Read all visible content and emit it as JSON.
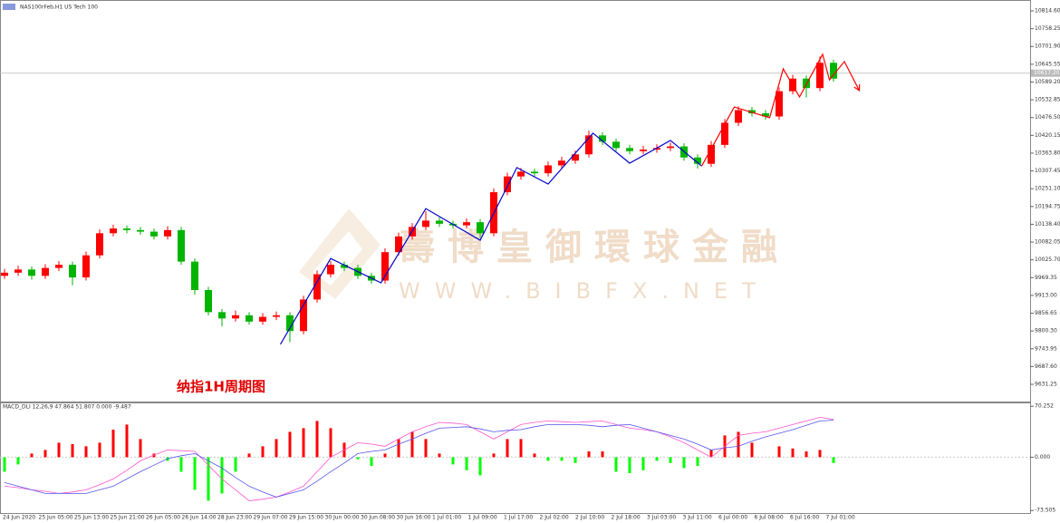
{
  "chart_data": [
    {
      "type": "candlestick",
      "title": "NAS100rFeb,H1  US Tech 100",
      "annotation": "纳指1H周期图",
      "watermark": "壽博皇御環球金融",
      "watermark_url": "WWW.BIBFX.NET",
      "up_color": "#ff0000",
      "down_color": "#00b400",
      "ylim": [
        9576.7,
        10843.3
      ],
      "yticks": [
        {
          "value": 10814.6,
          "label": "10814.60"
        },
        10758.25,
        {
          "value": 10701.9,
          "label": "10701.90"
        },
        10645.55,
        {
          "value": 10589.2,
          "label": "10589.20"
        },
        10532.85,
        {
          "value": 10476.5,
          "label": "10476.50"
        },
        10420.15,
        {
          "value": 10363.8,
          "label": "10363.80"
        },
        10307.45,
        {
          "value": 10251.1,
          "label": "10251.10"
        },
        10194.75,
        {
          "value": 10138.4,
          "label": "10138.40"
        },
        10082.05,
        {
          "value": 10025.7,
          "label": "10025.70"
        },
        9969.35,
        {
          "value": 9913,
          "label": "9913.00"
        },
        9856.65,
        {
          "value": 9800.3,
          "label": "9800.30"
        },
        9743.95,
        {
          "value": 9687.6,
          "label": "9687.60"
        },
        9631.25
      ],
      "current_price": {
        "value": 10617.2,
        "label": "10617.20"
      },
      "x_labels": [
        "24 Jun 2020",
        "25 Jun 05:00",
        "25 Jun 13:00",
        "25 Jun 21:00",
        "26 Jun 05:00",
        "26 Jun 14:00",
        "28 Jun 23:00",
        "29 Jun 07:00",
        "29 Jun 15:00",
        "30 Jun 00:00",
        "30 Jun 08:00",
        "30 Jun 16:00",
        "1 Jul 01:00",
        "1 Jul 09:00",
        "1 Jul 17:00",
        "2 Jul 02:00",
        "2 Jul 10:00",
        "2 Jul 18:00",
        "3 Jul 03:00",
        "3 Jul 11:00",
        "6 Jul 00:00",
        "6 Jul 08:00",
        "6 Jul 16:00",
        "7 Jul 01:00"
      ],
      "ohlc": [
        [
          9975,
          9997,
          9965,
          9985
        ],
        [
          9985,
          10007,
          9975,
          9995
        ],
        [
          9995,
          10005,
          9963,
          9975
        ],
        [
          9975,
          10012,
          9965,
          10000
        ],
        [
          10000,
          10022,
          9990,
          10010
        ],
        [
          10010,
          10020,
          9945,
          9970
        ],
        [
          9970,
          10052,
          9960,
          10040
        ],
        [
          10040,
          10122,
          10030,
          10110
        ],
        [
          10110,
          10137,
          10100,
          10125
        ],
        [
          10125,
          10135,
          10110,
          10120
        ],
        [
          10120,
          10130,
          10105,
          10115
        ],
        [
          10115,
          10125,
          10090,
          10100
        ],
        [
          10100,
          10132,
          10090,
          10120
        ],
        [
          10120,
          10130,
          10010,
          10020
        ],
        [
          10020,
          10030,
          9915,
          9930
        ],
        [
          9930,
          9940,
          9850,
          9860
        ],
        [
          9860,
          9870,
          9815,
          9840
        ],
        [
          9840,
          9865,
          9830,
          9850
        ],
        [
          9850,
          9860,
          9820,
          9830
        ],
        [
          9830,
          9857,
          9820,
          9845
        ],
        [
          9845,
          9862,
          9835,
          9850
        ],
        [
          9850,
          9860,
          9765,
          9800
        ],
        [
          9800,
          9912,
          9790,
          9900
        ],
        [
          9900,
          9992,
          9890,
          9980
        ],
        [
          9980,
          10022,
          9970,
          10010
        ],
        [
          10010,
          10020,
          9990,
          10000
        ],
        [
          10000,
          10010,
          9965,
          9975
        ],
        [
          9975,
          9985,
          9950,
          9960
        ],
        [
          9960,
          10062,
          9950,
          10050
        ],
        [
          10050,
          10112,
          10040,
          10100
        ],
        [
          10100,
          10142,
          10090,
          10130
        ],
        [
          10130,
          10180,
          10120,
          10150
        ],
        [
          10150,
          10160,
          10130,
          10140
        ],
        [
          10140,
          10150,
          10125,
          10135
        ],
        [
          10135,
          10157,
          10125,
          10145
        ],
        [
          10145,
          10155,
          10095,
          10110
        ],
        [
          10110,
          10252,
          10100,
          10240
        ],
        [
          10240,
          10302,
          10230,
          10290
        ],
        [
          10290,
          10317,
          10280,
          10305
        ],
        [
          10305,
          10315,
          10290,
          10300
        ],
        [
          10300,
          10337,
          10290,
          10325
        ],
        [
          10325,
          10352,
          10315,
          10340
        ],
        [
          10340,
          10372,
          10330,
          10360
        ],
        [
          10360,
          10435,
          10350,
          10420
        ],
        [
          10420,
          10430,
          10390,
          10400
        ],
        [
          10400,
          10410,
          10370,
          10380
        ],
        [
          10380,
          10390,
          10360,
          10370
        ],
        [
          10370,
          10387,
          10360,
          10375
        ],
        [
          10375,
          10392,
          10365,
          10380
        ],
        [
          10380,
          10397,
          10370,
          10385
        ],
        [
          10385,
          10395,
          10340,
          10350
        ],
        [
          10350,
          10360,
          10315,
          10330
        ],
        [
          10330,
          10402,
          10320,
          10390
        ],
        [
          10390,
          10472,
          10380,
          10460
        ],
        [
          10460,
          10512,
          10450,
          10500
        ],
        [
          10500,
          10510,
          10480,
          10490
        ],
        [
          10490,
          10500,
          10470,
          10480
        ],
        [
          10480,
          10572,
          10470,
          10560
        ],
        [
          10560,
          10612,
          10550,
          10600
        ],
        [
          10600,
          10610,
          10540,
          10570
        ],
        [
          10570,
          10670,
          10560,
          10650
        ],
        [
          10650,
          10660,
          10590,
          10600
        ]
      ],
      "zigzags": [
        {
          "color": "#0000cc",
          "points": [
            [
              20.3,
              9758
            ],
            [
              24,
              10030
            ],
            [
              27.7,
              9953
            ],
            [
              31,
              10188
            ],
            [
              35,
              10088
            ],
            [
              37.7,
              10318
            ],
            [
              40,
              10266
            ],
            [
              43.3,
              10427
            ],
            [
              46,
              10332
            ],
            [
              49,
              10404
            ],
            [
              51.3,
              10323
            ]
          ]
        },
        {
          "color": "#ff0000",
          "points": [
            [
              51.3,
              10323
            ],
            [
              53.7,
              10510
            ],
            [
              56.3,
              10476
            ],
            [
              57.3,
              10631
            ],
            [
              58.5,
              10542
            ],
            [
              60.2,
              10677
            ],
            [
              60.7,
              10596
            ],
            [
              61.8,
              10654
            ],
            [
              62.9,
              10562
            ]
          ]
        }
      ]
    },
    {
      "type": "macd",
      "title": "MACD_DLI 12,26,9 47.864 51.807 0.000 -9.487",
      "ylim": [
        -77,
        75.5
      ],
      "yticks": [
        {
          "value": 70.252,
          "label": "70.252"
        },
        {
          "value": 0,
          "label": "0.000"
        },
        {
          "value": -73.505,
          "label": "-73.505"
        }
      ],
      "pos_color": "#ff0000",
      "neg_color": "#00ff00",
      "histogram": [
        -20,
        -10,
        5,
        10,
        20,
        18,
        15,
        20,
        38,
        45,
        25,
        5,
        -5,
        -20,
        -45,
        -60,
        -50,
        -20,
        5,
        15,
        25,
        35,
        40,
        50,
        40,
        20,
        -3,
        -12,
        5,
        25,
        35,
        25,
        5,
        -10,
        -18,
        -25,
        5,
        25,
        25,
        5,
        -5,
        -5,
        -8,
        8,
        8,
        -20,
        -22,
        -18,
        -5,
        -8,
        -15,
        -12,
        10,
        30,
        35,
        20,
        0,
        15,
        12,
        8,
        10,
        -8
      ],
      "series": [
        {
          "color": "#ff55cc",
          "values": [
            -40,
            -42,
            -45,
            -47,
            -50,
            -48,
            -45,
            -38,
            -30,
            -18,
            -5,
            3,
            10,
            9,
            8,
            -11,
            -30,
            -45,
            -60,
            -58,
            -55,
            -48,
            -40,
            -20,
            0,
            10,
            20,
            18,
            15,
            25,
            35,
            42,
            48,
            47,
            45,
            35,
            25,
            35,
            45,
            48,
            50,
            49,
            48,
            49,
            50,
            45,
            40,
            38,
            35,
            28,
            20,
            10,
            0,
            15,
            30,
            33,
            35,
            40,
            45,
            50,
            55,
            52
          ]
        },
        {
          "color": "#5555ee",
          "values": [
            -35,
            -40,
            -45,
            -50,
            -50,
            -50,
            -50,
            -45,
            -40,
            -30,
            -20,
            -11,
            -2,
            2,
            5,
            -5,
            -15,
            -28,
            -40,
            -48,
            -55,
            -50,
            -45,
            -33,
            -20,
            -8,
            5,
            8,
            10,
            18,
            25,
            33,
            40,
            41,
            42,
            39,
            35,
            37,
            38,
            42,
            45,
            45,
            45,
            44,
            42,
            44,
            45,
            40,
            35,
            30,
            25,
            18,
            10,
            13,
            15,
            22,
            28,
            33,
            38,
            44,
            50,
            51
          ]
        }
      ]
    }
  ]
}
